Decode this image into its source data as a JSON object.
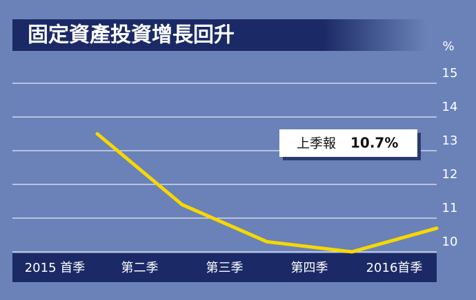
{
  "chart_data": {
    "type": "line",
    "title": "固定資產投資增長回升",
    "y_unit": "%",
    "categories": [
      "2015 首季",
      "第二季",
      "第三季",
      "第四季",
      "2016首季"
    ],
    "series": [
      {
        "name": "固定資產投資增長",
        "color": "#f6d800",
        "values": [
          13.5,
          11.4,
          10.3,
          10.0,
          10.7
        ]
      }
    ],
    "ylim": [
      10,
      16
    ],
    "yticks": [
      10,
      11,
      12,
      13,
      14,
      15
    ],
    "grid": true,
    "annotation": {
      "label": "上季報",
      "value_label": "10.7%"
    }
  }
}
